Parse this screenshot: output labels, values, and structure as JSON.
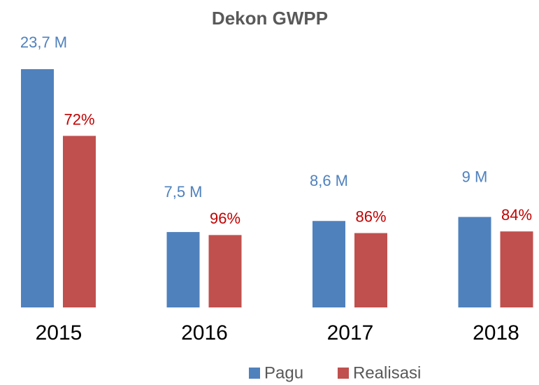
{
  "chart_data": {
    "type": "bar",
    "title": "Dekon GWPP",
    "categories": [
      "2015",
      "2016",
      "2017",
      "2018"
    ],
    "series": [
      {
        "name": "Pagu",
        "color": "#4f81bd",
        "label_color": "#4f81bd",
        "values": [
          23.7,
          7.5,
          8.6,
          9
        ],
        "value_labels": [
          "23,7 M",
          "7,5 M",
          "8,6 M",
          "9 M"
        ]
      },
      {
        "name": "Realisasi",
        "color": "#c0504d",
        "label_color": "#c00000",
        "values": [
          72,
          96,
          86,
          84
        ],
        "value_labels": [
          "72%",
          "96%",
          "86%",
          "84%"
        ]
      }
    ],
    "legend": "bottom"
  }
}
